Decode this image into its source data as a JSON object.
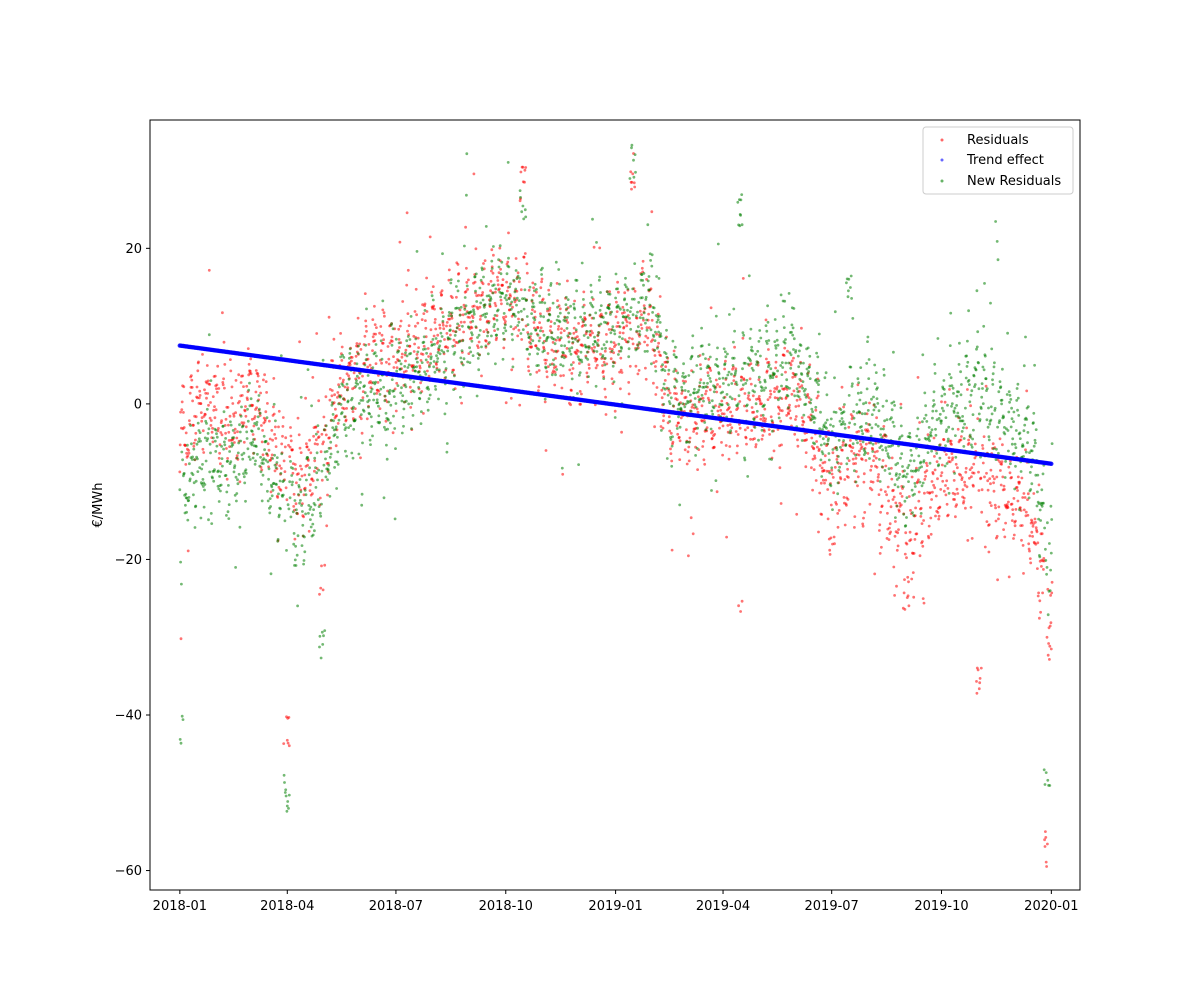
{
  "chart_data": {
    "type": "scatter",
    "title": "",
    "xlabel": "",
    "ylabel": "€/MWh",
    "xlim": [
      "2017-12-07",
      "2020-01-25"
    ],
    "ylim": [
      -62.5,
      36.5
    ],
    "x_ticks": [
      "2018-01",
      "2018-04",
      "2018-07",
      "2018-10",
      "2019-01",
      "2019-04",
      "2019-07",
      "2019-10",
      "2020-01"
    ],
    "y_ticks": [
      20,
      0,
      -20,
      -40,
      -60
    ],
    "grid": false,
    "legend_position": "top-right",
    "series": [
      {
        "name": "Residuals",
        "color": "#ff0000",
        "profile": [
          [
            "2018-01-01",
            -6
          ],
          [
            "2018-01-15",
            0
          ],
          [
            "2018-02-15",
            -2
          ],
          [
            "2018-03-01",
            2
          ],
          [
            "2018-03-20",
            -6
          ],
          [
            "2018-04-10",
            -10
          ],
          [
            "2018-04-25",
            -7
          ],
          [
            "2018-05-15",
            2
          ],
          [
            "2018-06-10",
            6
          ],
          [
            "2018-07-01",
            5
          ],
          [
            "2018-08-01",
            9
          ],
          [
            "2018-09-01",
            12
          ],
          [
            "2018-10-01",
            14
          ],
          [
            "2018-11-01",
            9
          ],
          [
            "2018-12-01",
            7
          ],
          [
            "2019-01-01",
            8
          ],
          [
            "2019-02-01",
            10
          ],
          [
            "2019-02-15",
            -2
          ],
          [
            "2019-04-01",
            -1
          ],
          [
            "2019-05-01",
            0
          ],
          [
            "2019-06-01",
            1
          ],
          [
            "2019-07-01",
            -10
          ],
          [
            "2019-08-01",
            -6
          ],
          [
            "2019-09-01",
            -16
          ],
          [
            "2019-10-01",
            -10
          ],
          [
            "2019-11-01",
            -8
          ],
          [
            "2019-12-15",
            -14
          ],
          [
            "2020-01-01",
            -30
          ]
        ],
        "spikes": [
          [
            "2018-01-01",
            -30
          ],
          [
            "2018-03-31",
            -42
          ],
          [
            "2018-04-30",
            -22
          ],
          [
            "2018-10-15",
            28
          ],
          [
            "2019-01-15",
            30
          ],
          [
            "2019-04-15",
            -27
          ],
          [
            "2019-07-01",
            -18
          ],
          [
            "2019-09-01",
            -24
          ],
          [
            "2019-11-01",
            -36
          ],
          [
            "2019-12-28",
            -57
          ]
        ]
      },
      {
        "name": "Trend effect",
        "color": "#0000ff",
        "x": [
          "2018-01-01",
          "2020-01-01"
        ],
        "y": [
          7.5,
          -7.7
        ]
      },
      {
        "name": "New Residuals",
        "color": "#008000",
        "profile": [
          [
            "2018-01-01",
            -12
          ],
          [
            "2018-01-15",
            -7
          ],
          [
            "2018-02-15",
            -8
          ],
          [
            "2018-03-01",
            -3
          ],
          [
            "2018-03-20",
            -10
          ],
          [
            "2018-04-10",
            -14
          ],
          [
            "2018-04-25",
            -12
          ],
          [
            "2018-05-15",
            -1
          ],
          [
            "2018-06-10",
            2
          ],
          [
            "2018-07-01",
            1
          ],
          [
            "2018-08-01",
            6
          ],
          [
            "2018-09-01",
            11
          ],
          [
            "2018-10-01",
            14
          ],
          [
            "2018-11-01",
            10
          ],
          [
            "2018-12-01",
            8
          ],
          [
            "2019-01-01",
            11
          ],
          [
            "2019-02-01",
            13
          ],
          [
            "2019-02-15",
            1
          ],
          [
            "2019-04-01",
            3
          ],
          [
            "2019-05-01",
            4
          ],
          [
            "2019-06-01",
            6
          ],
          [
            "2019-07-01",
            -5
          ],
          [
            "2019-08-01",
            0
          ],
          [
            "2019-09-01",
            -9
          ],
          [
            "2019-10-01",
            -2
          ],
          [
            "2019-11-01",
            2
          ],
          [
            "2019-12-15",
            -6
          ],
          [
            "2020-01-01",
            -22
          ]
        ],
        "spikes": [
          [
            "2018-01-01",
            -42
          ],
          [
            "2018-03-31",
            -50
          ],
          [
            "2018-04-30",
            -31
          ],
          [
            "2018-10-15",
            26
          ],
          [
            "2019-01-15",
            31
          ],
          [
            "2019-04-15",
            25
          ],
          [
            "2019-07-15",
            15
          ],
          [
            "2019-11-15",
            21
          ],
          [
            "2019-12-28",
            -49
          ]
        ]
      }
    ]
  }
}
